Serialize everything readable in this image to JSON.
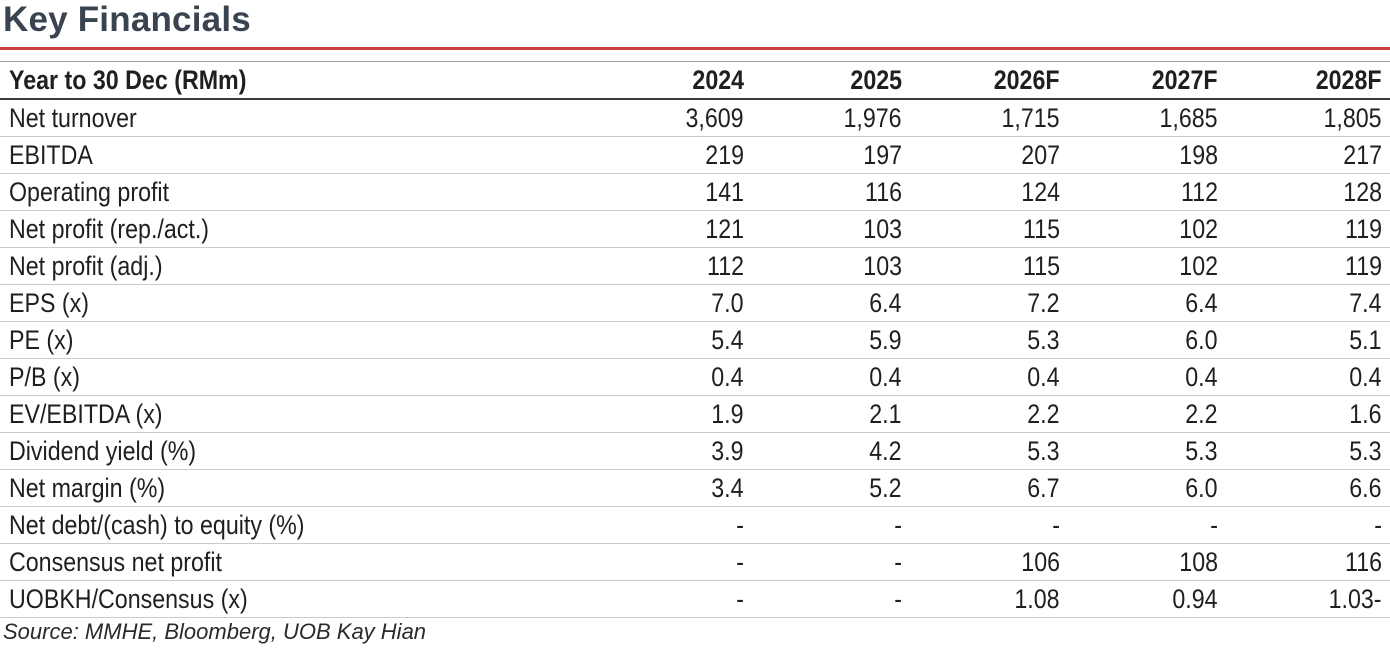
{
  "title": "Key Financials",
  "columns": [
    "Year to 30 Dec (RMm)",
    "2024",
    "2025",
    "2026F",
    "2027F",
    "2028F"
  ],
  "rows": [
    {
      "label": "Net turnover",
      "values": [
        "3,609",
        "1,976",
        "1,715",
        "1,685",
        "1,805"
      ]
    },
    {
      "label": "EBITDA",
      "values": [
        "219",
        "197",
        "207",
        "198",
        "217"
      ]
    },
    {
      "label": "Operating profit",
      "values": [
        "141",
        "116",
        "124",
        "112",
        "128"
      ]
    },
    {
      "label": "Net profit (rep./act.)",
      "values": [
        "121",
        "103",
        "115",
        "102",
        "119"
      ]
    },
    {
      "label": "Net profit (adj.)",
      "values": [
        "112",
        "103",
        "115",
        "102",
        "119"
      ]
    },
    {
      "label": "EPS (x)",
      "values": [
        "7.0",
        "6.4",
        "7.2",
        "6.4",
        "7.4"
      ]
    },
    {
      "label": "PE (x)",
      "values": [
        "5.4",
        "5.9",
        "5.3",
        "6.0",
        "5.1"
      ]
    },
    {
      "label": "P/B (x)",
      "values": [
        "0.4",
        "0.4",
        "0.4",
        "0.4",
        "0.4"
      ]
    },
    {
      "label": "EV/EBITDA (x)",
      "values": [
        "1.9",
        "2.1",
        "2.2",
        "2.2",
        "1.6"
      ]
    },
    {
      "label": "Dividend yield (%)",
      "values": [
        "3.9",
        "4.2",
        "5.3",
        "5.3",
        "5.3"
      ]
    },
    {
      "label": "Net margin (%)",
      "values": [
        "3.4",
        "5.2",
        "6.7",
        "6.0",
        "6.6"
      ]
    },
    {
      "label": "Net debt/(cash) to equity (%)",
      "values": [
        "-",
        "-",
        "-",
        "-",
        "-"
      ]
    },
    {
      "label": "Consensus net profit",
      "values": [
        "-",
        "-",
        "106",
        "108",
        "116"
      ]
    },
    {
      "label": "UOBKH/Consensus (x)",
      "values": [
        "-",
        "-",
        "1.08",
        "0.94",
        "1.03-"
      ]
    }
  ],
  "source": "Source: MMHE, Bloomberg, UOB Kay Hian",
  "colors": {
    "title": "#3a4450",
    "accent_rule": "#c9403d"
  }
}
